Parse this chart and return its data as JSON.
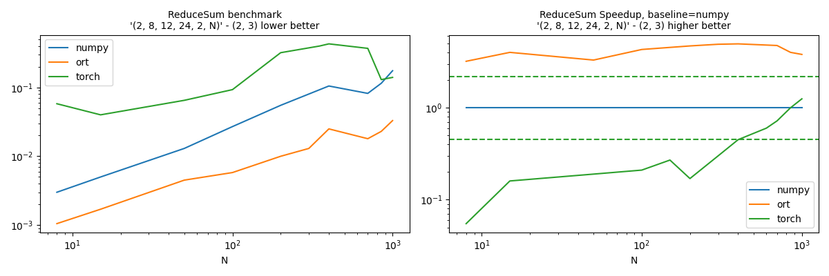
{
  "title1": "ReduceSum benchmark\n'(2, 8, 12, 24, 2, N)' - (2, 3) lower better",
  "title2": "ReduceSum Speedup, baseline=numpy\n'(2, 8, 12, 24, 2, N)' - (2, 3) higher better",
  "xlabel": "N",
  "numpy_color": "#1f77b4",
  "ort_color": "#ff7f0e",
  "torch_color": "#2ca02c",
  "numpy_N": [
    8,
    15,
    50,
    100,
    200,
    400,
    700,
    850,
    1000
  ],
  "numpy_times": [
    0.003,
    0.005,
    0.013,
    0.027,
    0.055,
    0.105,
    0.082,
    0.115,
    0.175
  ],
  "ort_N": [
    8,
    15,
    50,
    100,
    200,
    300,
    400,
    700,
    850,
    1000
  ],
  "ort_times": [
    0.00105,
    0.0017,
    0.0045,
    0.0058,
    0.01,
    0.013,
    0.025,
    0.018,
    0.023,
    0.033
  ],
  "torch_N": [
    8,
    15,
    50,
    100,
    200,
    350,
    400,
    700,
    850,
    1000
  ],
  "torch_times": [
    0.058,
    0.04,
    0.065,
    0.093,
    0.32,
    0.4,
    0.43,
    0.37,
    0.13,
    0.14
  ],
  "speedup_numpy_N": [
    8,
    1000
  ],
  "speedup_numpy": [
    1.0,
    1.0
  ],
  "speedup_ort_N": [
    8,
    15,
    50,
    100,
    200,
    300,
    400,
    700,
    850,
    1000
  ],
  "speedup_ort": [
    3.2,
    4.0,
    3.3,
    4.3,
    4.7,
    4.9,
    4.95,
    4.75,
    4.0,
    3.8
  ],
  "speedup_torch_N": [
    8,
    15,
    50,
    100,
    150,
    200,
    300,
    400,
    600,
    700,
    850,
    1000
  ],
  "speedup_torch": [
    0.055,
    0.16,
    0.19,
    0.21,
    0.27,
    0.17,
    0.3,
    0.45,
    0.6,
    0.72,
    1.0,
    1.25
  ],
  "torch_dashed_upper": 2.2,
  "torch_dashed_lower": 0.45,
  "figsize": [
    12.0,
    4.0
  ],
  "dpi": 100
}
